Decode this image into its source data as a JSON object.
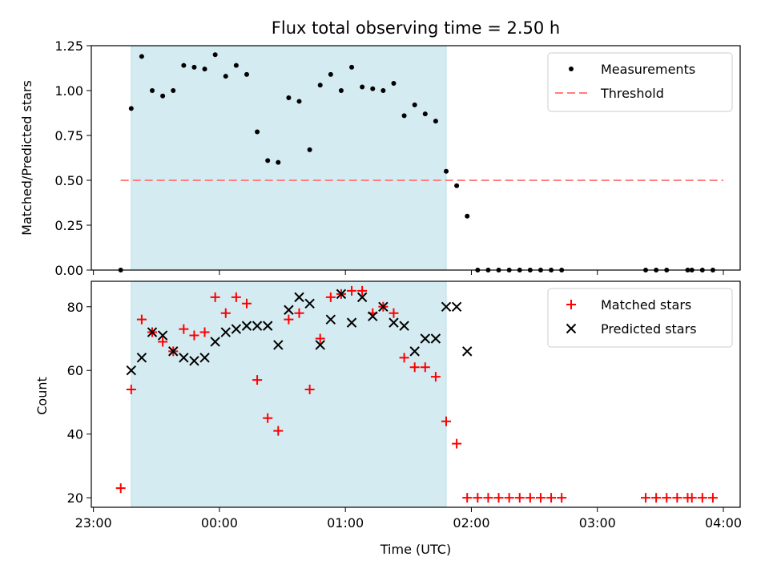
{
  "chart_data": {
    "type": "scatter",
    "title": "Flux total observing time = 2.50 h",
    "xlabel": "Time (UTC)",
    "x_ticks": [
      "23:00",
      "00:00",
      "01:00",
      "02:00",
      "03:00",
      "04:00"
    ],
    "x_range": [
      "22:59",
      "04:08"
    ],
    "shaded_interval": [
      "23:18",
      "01:48"
    ],
    "shade_color": "#d4ebf1",
    "top_panel": {
      "ylabel": "Matched/Predicted stars",
      "ylim": [
        0,
        1.25
      ],
      "y_ticks": [
        "0.00",
        "0.25",
        "0.50",
        "0.75",
        "1.00",
        "1.25"
      ],
      "legend": {
        "position": "top-right",
        "entries": [
          "Measurements",
          "Threshold"
        ]
      },
      "series": [
        {
          "name": "Measurements",
          "marker": "dot",
          "color": "#000000",
          "x": [
            "23:13",
            "23:18",
            "23:23",
            "23:28",
            "23:33",
            "23:38",
            "23:43",
            "23:48",
            "23:53",
            "23:58",
            "00:03",
            "00:08",
            "00:13",
            "00:18",
            "00:23",
            "00:28",
            "00:33",
            "00:38",
            "00:43",
            "00:48",
            "00:53",
            "00:58",
            "01:03",
            "01:08",
            "01:13",
            "01:18",
            "01:23",
            "01:28",
            "01:33",
            "01:38",
            "01:43",
            "01:48",
            "01:53",
            "01:58",
            "02:03",
            "02:08",
            "02:13",
            "02:18",
            "02:23",
            "02:28",
            "02:33",
            "02:38",
            "02:43",
            "03:23",
            "03:28",
            "03:33",
            "03:43",
            "03:45",
            "03:50",
            "03:55"
          ],
          "y": [
            0.0,
            0.9,
            1.19,
            1.0,
            0.97,
            1.0,
            1.14,
            1.13,
            1.12,
            1.2,
            1.08,
            1.14,
            1.09,
            0.77,
            0.61,
            0.6,
            0.96,
            0.94,
            0.67,
            1.03,
            1.09,
            1.0,
            1.13,
            1.02,
            1.01,
            1.0,
            1.04,
            0.86,
            0.92,
            0.87,
            0.83,
            0.55,
            0.47,
            0.3,
            0.0,
            0.0,
            0.0,
            0.0,
            0.0,
            0.0,
            0.0,
            0.0,
            0.0,
            0.0,
            0.0,
            0.0,
            0.0,
            0.0,
            0.0,
            0.0
          ]
        },
        {
          "name": "Threshold",
          "line_style": "dashed",
          "color": "#ff7f7f",
          "x": [
            "23:13",
            "04:00"
          ],
          "y": [
            0.5,
            0.5
          ]
        }
      ]
    },
    "bottom_panel": {
      "ylabel": "Count",
      "ylim": [
        17,
        88
      ],
      "y_ticks": [
        "20",
        "40",
        "60",
        "80"
      ],
      "legend": {
        "position": "top-right",
        "entries": [
          "Matched stars",
          "Predicted stars"
        ]
      },
      "series": [
        {
          "name": "Matched stars",
          "marker": "plus",
          "color": "#ff0000",
          "x": [
            "23:13",
            "23:18",
            "23:23",
            "23:28",
            "23:33",
            "23:38",
            "23:43",
            "23:48",
            "23:53",
            "23:58",
            "00:03",
            "00:08",
            "00:13",
            "00:18",
            "00:23",
            "00:28",
            "00:33",
            "00:38",
            "00:43",
            "00:48",
            "00:53",
            "00:58",
            "01:03",
            "01:08",
            "01:13",
            "01:18",
            "01:23",
            "01:28",
            "01:33",
            "01:38",
            "01:43",
            "01:48",
            "01:53",
            "01:58",
            "02:03",
            "02:08",
            "02:13",
            "02:18",
            "02:23",
            "02:28",
            "02:33",
            "02:38",
            "02:43",
            "03:23",
            "03:28",
            "03:33",
            "03:38",
            "03:43",
            "03:45",
            "03:50",
            "03:55"
          ],
          "y": [
            23,
            54,
            76,
            72,
            69,
            66,
            73,
            71,
            72,
            83,
            78,
            83,
            81,
            57,
            45,
            41,
            76,
            78,
            54,
            70,
            83,
            84,
            85,
            85,
            78,
            80,
            78,
            64,
            61,
            61,
            58,
            44,
            37,
            20,
            20,
            20,
            20,
            20,
            20,
            20,
            20,
            20,
            20,
            20,
            20,
            20,
            20,
            20,
            20,
            20,
            20
          ]
        },
        {
          "name": "Predicted stars",
          "marker": "x",
          "color": "#000000",
          "x": [
            "23:18",
            "23:23",
            "23:28",
            "23:33",
            "23:38",
            "23:43",
            "23:48",
            "23:53",
            "23:58",
            "00:03",
            "00:08",
            "00:13",
            "00:18",
            "00:23",
            "00:28",
            "00:33",
            "00:38",
            "00:43",
            "00:48",
            "00:53",
            "00:58",
            "01:03",
            "01:08",
            "01:13",
            "01:18",
            "01:23",
            "01:28",
            "01:33",
            "01:38",
            "01:43",
            "01:48",
            "01:53",
            "01:58"
          ],
          "y": [
            60,
            64,
            72,
            71,
            66,
            64,
            63,
            64,
            69,
            72,
            73,
            74,
            74,
            74,
            68,
            79,
            83,
            81,
            68,
            76,
            84,
            75,
            83,
            77,
            80,
            75,
            74,
            66,
            70,
            70,
            80,
            80,
            66
          ]
        }
      ]
    }
  }
}
